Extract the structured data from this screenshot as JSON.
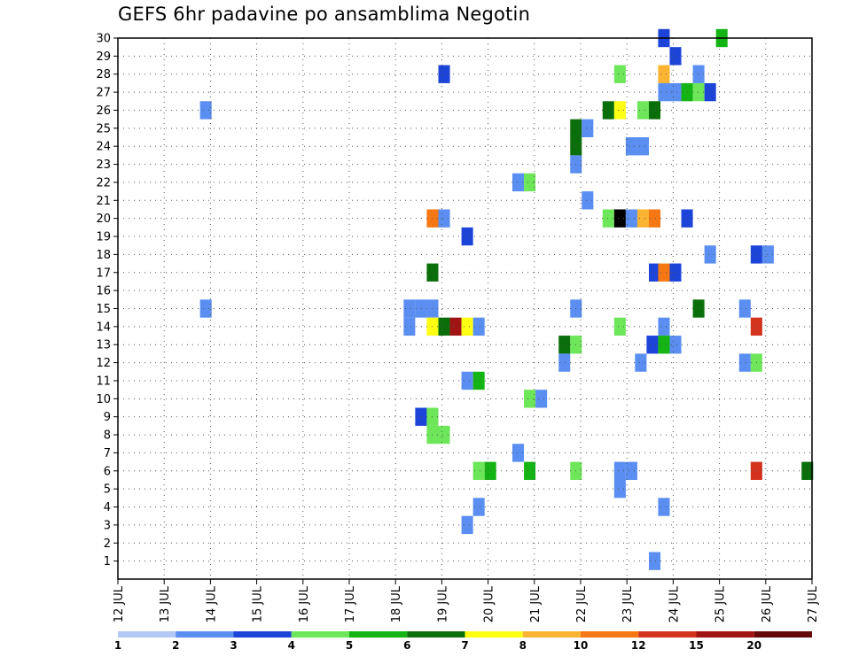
{
  "chart_data": {
    "type": "heatmap",
    "title": "GEFS 6hr padavine po ansamblima Negotin",
    "x_tick_labels": [
      "12 JUL",
      "13 JUL",
      "14 JUL",
      "15 JUL",
      "16 JUL",
      "17 JUL",
      "18 JUL",
      "19 JUL",
      "20 JUL",
      "21 JUL",
      "22 JUL",
      "23 JUL",
      "24 JUL",
      "25 JUL",
      "26 JUL",
      "27 JUL"
    ],
    "xlim": [
      "12 JUL 00Z",
      "27 JUL 00Z"
    ],
    "y_tick_labels": [
      "1",
      "2",
      "3",
      "4",
      "5",
      "6",
      "7",
      "8",
      "9",
      "10",
      "11",
      "12",
      "13",
      "14",
      "15",
      "16",
      "17",
      "18",
      "19",
      "20",
      "21",
      "22",
      "23",
      "24",
      "25",
      "26",
      "27",
      "28",
      "29",
      "30"
    ],
    "ylim": [
      0,
      30
    ],
    "grid": true,
    "legend": {
      "placement": "bottom",
      "labels": [
        "1",
        "2",
        "3",
        "4",
        "5",
        "6",
        "7",
        "8",
        "10",
        "12",
        "15",
        "20"
      ],
      "colors": [
        "#b4c8f5",
        "#5a8ef0",
        "#1c44d8",
        "#6ee65a",
        "#14b414",
        "#0a6e0a",
        "#ffff14",
        "#fab432",
        "#f57814",
        "#d2321e",
        "#a01414",
        "#640a0a"
      ]
    },
    "cells": [
      [
        23.8,
        30,
        2
      ],
      [
        25.05,
        30,
        4
      ],
      [
        24.05,
        29,
        2
      ],
      [
        19.05,
        28,
        2
      ],
      [
        22.85,
        28,
        3
      ],
      [
        23.8,
        28,
        7
      ],
      [
        24.55,
        28,
        1
      ],
      [
        23.8,
        27,
        1
      ],
      [
        24.05,
        27,
        1
      ],
      [
        24.3,
        27,
        4
      ],
      [
        24.55,
        27,
        3
      ],
      [
        24.8,
        27,
        2
      ],
      [
        13.9,
        26,
        1
      ],
      [
        22.6,
        26,
        5
      ],
      [
        22.85,
        26,
        6
      ],
      [
        23.35,
        26,
        3
      ],
      [
        23.6,
        26,
        5
      ],
      [
        21.9,
        25,
        5
      ],
      [
        22.15,
        25,
        1
      ],
      [
        21.9,
        24,
        5
      ],
      [
        23.1,
        24,
        1
      ],
      [
        23.35,
        24,
        1
      ],
      [
        21.9,
        23,
        1
      ],
      [
        20.65,
        22,
        1
      ],
      [
        20.9,
        22,
        3
      ],
      [
        22.15,
        21,
        1
      ],
      [
        18.8,
        20,
        8
      ],
      [
        19.05,
        20,
        1
      ],
      [
        22.6,
        20,
        3
      ],
      [
        22.85,
        20,
        12
      ],
      [
        23.1,
        20,
        1
      ],
      [
        23.35,
        20,
        7
      ],
      [
        23.6,
        20,
        8
      ],
      [
        24.3,
        20,
        2
      ],
      [
        19.55,
        19,
        2
      ],
      [
        24.8,
        18,
        1
      ],
      [
        25.8,
        18,
        2
      ],
      [
        26.05,
        18,
        1
      ],
      [
        18.8,
        17,
        5
      ],
      [
        23.6,
        17,
        2
      ],
      [
        23.8,
        17,
        8
      ],
      [
        24.05,
        17,
        2
      ],
      [
        13.9,
        15,
        1
      ],
      [
        18.3,
        15,
        1
      ],
      [
        18.55,
        15,
        1
      ],
      [
        18.8,
        15,
        1
      ],
      [
        21.9,
        15,
        1
      ],
      [
        24.55,
        15,
        5
      ],
      [
        25.55,
        15,
        1
      ],
      [
        18.3,
        14,
        1
      ],
      [
        18.8,
        14,
        6
      ],
      [
        19.05,
        14,
        5
      ],
      [
        19.3,
        14,
        10
      ],
      [
        19.55,
        14,
        6
      ],
      [
        19.8,
        14,
        1
      ],
      [
        22.85,
        14,
        3
      ],
      [
        23.8,
        14,
        1
      ],
      [
        25.8,
        14,
        9
      ],
      [
        21.65,
        13,
        5
      ],
      [
        21.9,
        13,
        3
      ],
      [
        23.55,
        13,
        2
      ],
      [
        23.8,
        13,
        4
      ],
      [
        24.05,
        13,
        1
      ],
      [
        21.65,
        12,
        1
      ],
      [
        23.3,
        12,
        1
      ],
      [
        25.55,
        12,
        1
      ],
      [
        25.8,
        12,
        3
      ],
      [
        19.55,
        11,
        1
      ],
      [
        19.8,
        11,
        4
      ],
      [
        20.9,
        10,
        3
      ],
      [
        21.15,
        10,
        1
      ],
      [
        18.55,
        9,
        2
      ],
      [
        18.8,
        9,
        3
      ],
      [
        18.8,
        8,
        3
      ],
      [
        19.05,
        8,
        3
      ],
      [
        20.65,
        7,
        1
      ],
      [
        19.8,
        6,
        3
      ],
      [
        20.05,
        6,
        4
      ],
      [
        20.9,
        6,
        4
      ],
      [
        21.9,
        6,
        3
      ],
      [
        22.85,
        6,
        1
      ],
      [
        23.1,
        6,
        1
      ],
      [
        25.8,
        6,
        9
      ],
      [
        26.9,
        6,
        5
      ],
      [
        22.85,
        5,
        1
      ],
      [
        19.8,
        4,
        1
      ],
      [
        23.8,
        4,
        1
      ],
      [
        19.55,
        3,
        1
      ],
      [
        23.6,
        1,
        1
      ]
    ]
  }
}
